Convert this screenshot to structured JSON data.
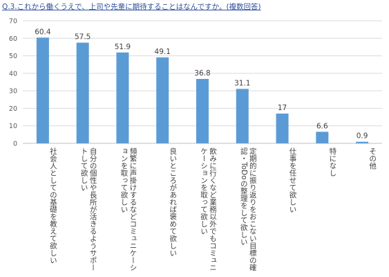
{
  "chart_data": {
    "type": "bar",
    "title": "Q.3.これから働くうえで、上司や先輩に期待することはなんですか。(複数回答)",
    "categories": [
      "社会人としての基礎を教えて欲しい",
      "自分の個性や長所が活きるようサポートして欲しい",
      "頻繁に声掛けするなどコミュニケーションを取って欲しい",
      "良いところがあれば褒めて欲しい",
      "飲みに行くなど業務以外でもコミュニケーションを取って欲しい",
      "定期的に振り返りをおこない目標の確認・ToDoの整理をして欲しい",
      "仕事を任せて欲しい",
      "特になし",
      "その他"
    ],
    "values": [
      60.4,
      57.5,
      51.9,
      49.1,
      36.8,
      31.1,
      17,
      6.6,
      0.9
    ],
    "value_labels": [
      "60.4",
      "57.5",
      "51.9",
      "49.1",
      "36.8",
      "31.1",
      "17",
      "6.6",
      "0.9"
    ],
    "ylim": [
      0,
      70
    ],
    "yticks": [
      "0",
      "10",
      "20",
      "30",
      "40",
      "50",
      "60",
      "70"
    ],
    "grid": true,
    "legend": "none",
    "colors": {
      "bar": "#5b9bd5",
      "grid": "#d9d9d9",
      "title": "#2e4f9a"
    }
  }
}
